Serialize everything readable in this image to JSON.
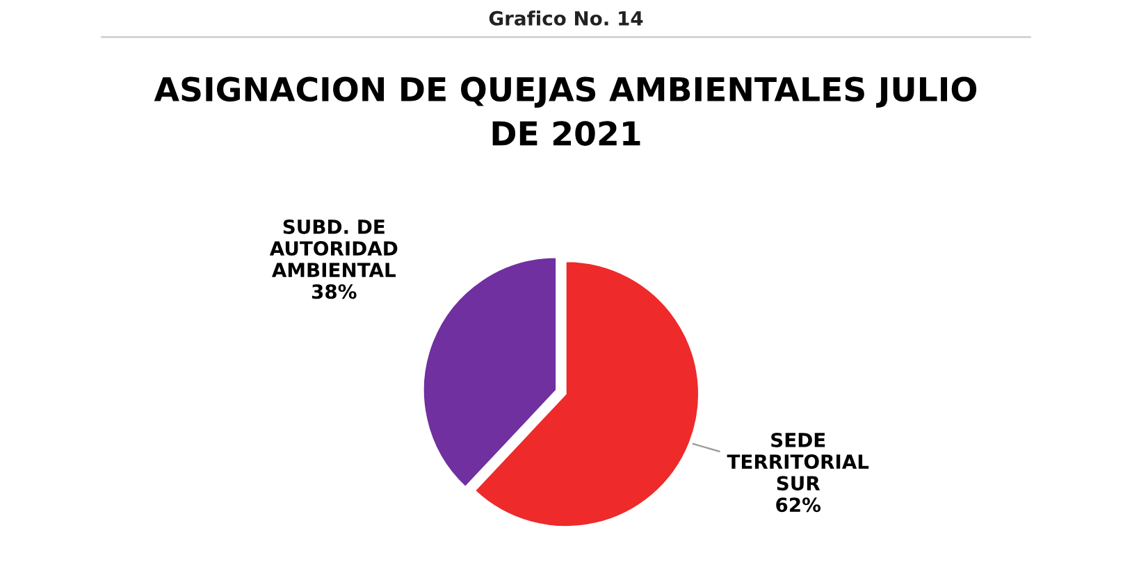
{
  "chart_data": {
    "type": "pie",
    "title": "ASIGNACION DE QUEJAS AMBIENTALES JULIO\nDE 2021",
    "annotations": [
      "Grafico No. 14"
    ],
    "categories": [
      "SEDE\nTERRITORIAL\nSUR",
      "SUBD. DE\nAUTORIDAD\nAMBIENTAL"
    ],
    "values": [
      62,
      38
    ],
    "colors": [
      "#ee2a2a",
      "#7030a0"
    ],
    "value_labels": [
      "62%",
      "38%"
    ],
    "legend": false
  }
}
